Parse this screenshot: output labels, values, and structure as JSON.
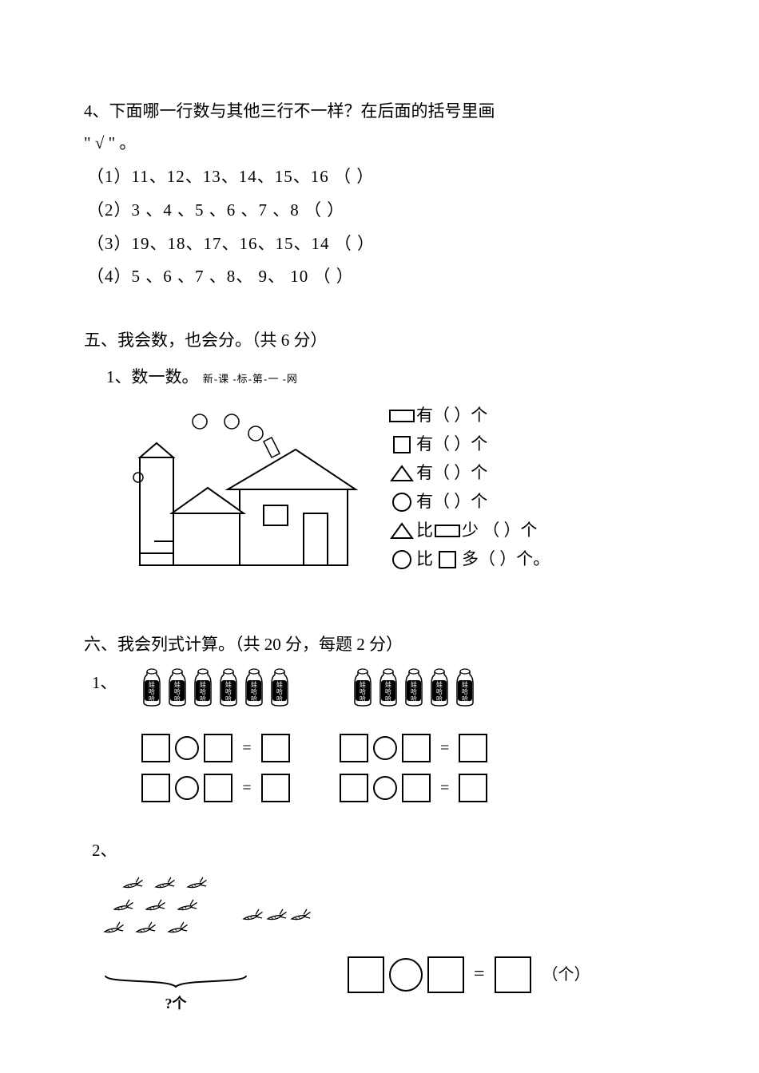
{
  "q4": {
    "prompt": "4、下面哪一行数与其他三行不一样？在后面的括号里画",
    "prompt2": "\" √ \" 。",
    "opt1": "（1）11、12、13、14、15、16   （       ）",
    "opt2": "（2）3  、4  、5  、6  、7  、8     （       ）",
    "opt3": "（3）19、18、17、16、15、14   （       ）",
    "opt4": "（4）5  、6  、7  、8、 9、 10   （       ）"
  },
  "s5": {
    "title": "五、我会数，也会分。（共 6 分）",
    "sub": "1、数一数。",
    "subSmall": "新-课  -标-第-一  -网",
    "c1": "有（   ）个",
    "c2": " 有（   ）个",
    "c3": "有（   ）个",
    "c4": " 有（   ）个",
    "c5a": " 比 ",
    "c5b": "少   （      ）个",
    "c6a": " 比 ",
    "c6b": " 多（      ）个。"
  },
  "s6": {
    "title": "六、我会列式计算。（共 20 分，每题 2 分）",
    "n1": "1、",
    "n2": "2、",
    "eq": "=",
    "braceLabel": "?个",
    "unit": "（个）",
    "bottlesLeft": 6,
    "bottlesRight": 5,
    "bottleLabel1": "娃",
    "bottleLabel2": "哈",
    "bottleLabel3": "哈",
    "carrotsLeft": 9,
    "carrotsRight": 3
  },
  "colors": {
    "stroke": "#000000",
    "fill": "#ffffff"
  }
}
